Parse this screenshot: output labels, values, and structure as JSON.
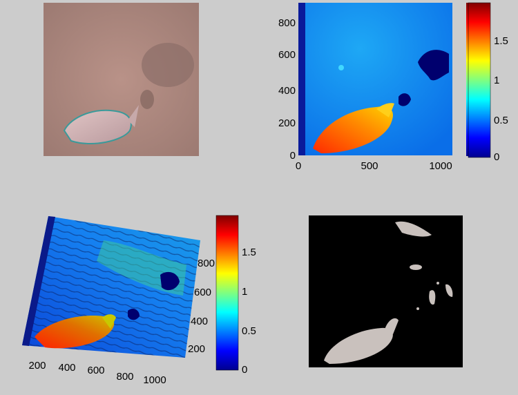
{
  "chart_data": [
    {
      "type": "image",
      "panel": "top-left",
      "description_visible": "photo"
    },
    {
      "type": "heatmap",
      "panel": "top-right",
      "x_ticks": [
        "0",
        "500",
        "1000"
      ],
      "y_ticks": [
        "0",
        "200",
        "400",
        "600",
        "800"
      ],
      "xlim": [
        0,
        1080
      ],
      "ylim": [
        0,
        940
      ],
      "colorbar": {
        "ticks": [
          "0",
          "0.5",
          "1",
          "1.5"
        ],
        "range": [
          0,
          1.95
        ],
        "colormap": "jet"
      }
    },
    {
      "type": "surface",
      "panel": "bottom-left",
      "x_ticks": [
        "200",
        "400",
        "600",
        "800",
        "1000"
      ],
      "y_ticks": [
        "200",
        "400",
        "600",
        "800"
      ],
      "colorbar": {
        "ticks": [
          "0",
          "0.5",
          "1",
          "1.5"
        ],
        "range": [
          0,
          1.95
        ],
        "colormap": "jet"
      }
    },
    {
      "type": "image",
      "panel": "bottom-right",
      "background": "#000000"
    }
  ],
  "colors": {
    "figure_bg": "#cccccc",
    "jet_low": "#00008f",
    "jet_mid": "#00c8ff",
    "jet_high": "#800000"
  }
}
